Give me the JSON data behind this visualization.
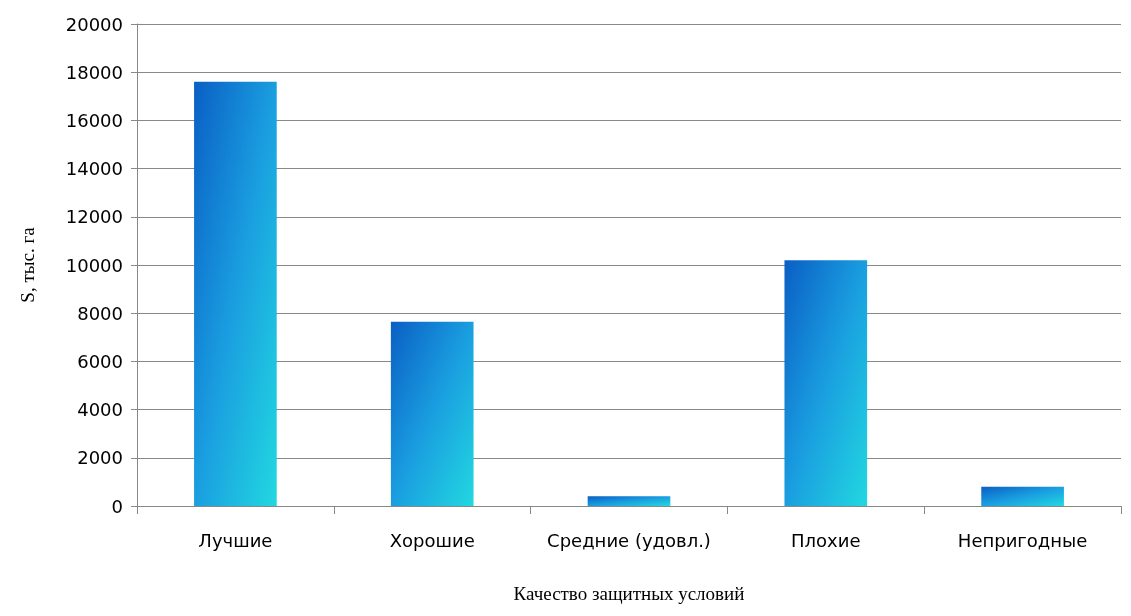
{
  "chart_data": {
    "type": "bar",
    "xlabel": "Качество защитных условий",
    "ylabel": "S, тыс. га",
    "categories": [
      "Лучшие",
      "Хорошие",
      "Средние (удовл.)",
      "Плохие",
      "Непригодные"
    ],
    "values": [
      17600,
      7650,
      400,
      10200,
      800
    ],
    "color": "#1a9ee0",
    "ylim": [
      0,
      20000
    ],
    "yticks": [
      0,
      2000,
      4000,
      6000,
      8000,
      10000,
      12000,
      14000,
      16000,
      18000,
      20000
    ],
    "grid": "y"
  }
}
